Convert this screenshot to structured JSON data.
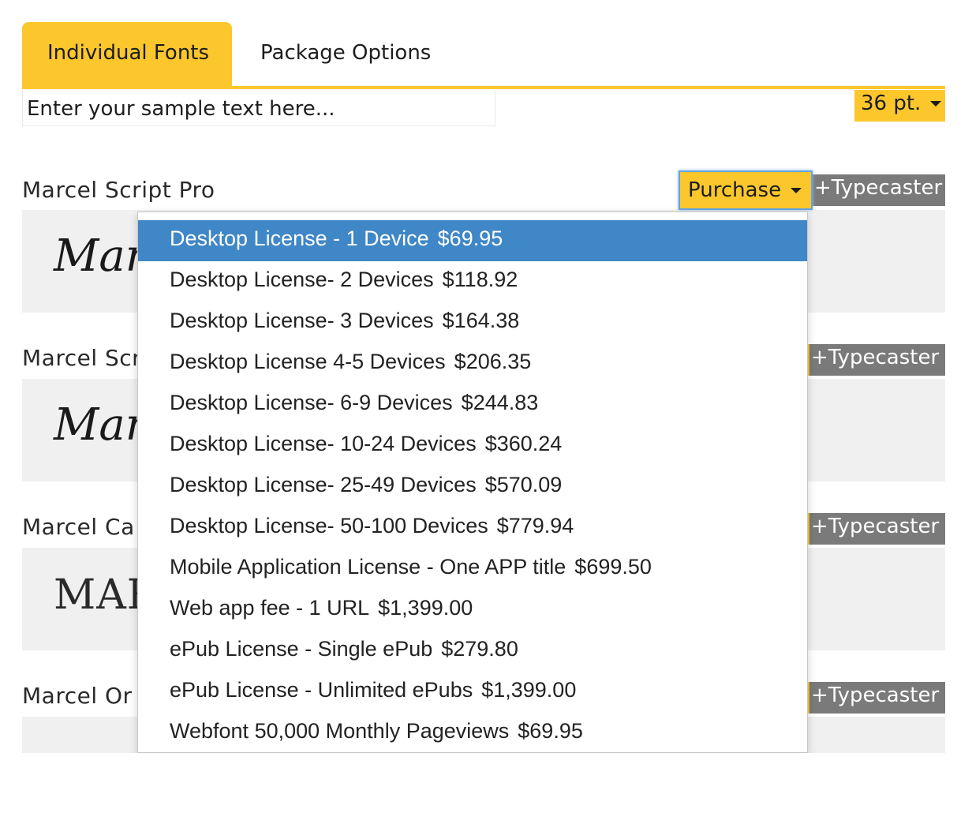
{
  "tabs": {
    "active": "Individual Fonts",
    "other": "Package Options"
  },
  "sample": {
    "placeholder": "Enter your sample text here..."
  },
  "size_select": {
    "value": "36 pt."
  },
  "fonts": [
    {
      "name": "Marcel Script Pro",
      "preview": "Marce",
      "typecaster": "+Typecaster",
      "purchase": "Purchase"
    },
    {
      "name": "Marcel Scr",
      "preview": "Marce",
      "typecaster": "+Typecaster"
    },
    {
      "name": "Marcel Ca",
      "preview": "MAR",
      "typecaster": "+Typecaster"
    },
    {
      "name": "Marcel Or",
      "preview": "",
      "typecaster": "+Typecaster"
    }
  ],
  "license_options": [
    {
      "label": "Desktop License - 1 Device",
      "price": "$69.95",
      "selected": true
    },
    {
      "label": "Desktop License- 2 Devices",
      "price": "$118.92"
    },
    {
      "label": "Desktop License- 3 Devices",
      "price": "$164.38"
    },
    {
      "label": "Desktop License 4-5 Devices",
      "price": "$206.35"
    },
    {
      "label": "Desktop License- 6-9 Devices",
      "price": "$244.83"
    },
    {
      "label": "Desktop License- 10-24 Devices",
      "price": "$360.24"
    },
    {
      "label": "Desktop License- 25-49 Devices",
      "price": "$570.09"
    },
    {
      "label": "Desktop License- 50-100 Devices",
      "price": "$779.94"
    },
    {
      "label": "Mobile Application License - One APP title",
      "price": "$699.50"
    },
    {
      "label": "Web app fee - 1 URL",
      "price": "$1,399.00"
    },
    {
      "label": "ePub License - Single ePub",
      "price": "$279.80"
    },
    {
      "label": "ePub License - Unlimited ePubs",
      "price": "$1,399.00"
    },
    {
      "label": "Webfont 50,000 Monthly Pageviews",
      "price": "$69.95"
    }
  ],
  "colors": {
    "accent": "#fcc72c",
    "selected": "#3f87c6",
    "typecaster_bg": "#7a7a7a",
    "preview_bg": "#f0f0f0"
  }
}
